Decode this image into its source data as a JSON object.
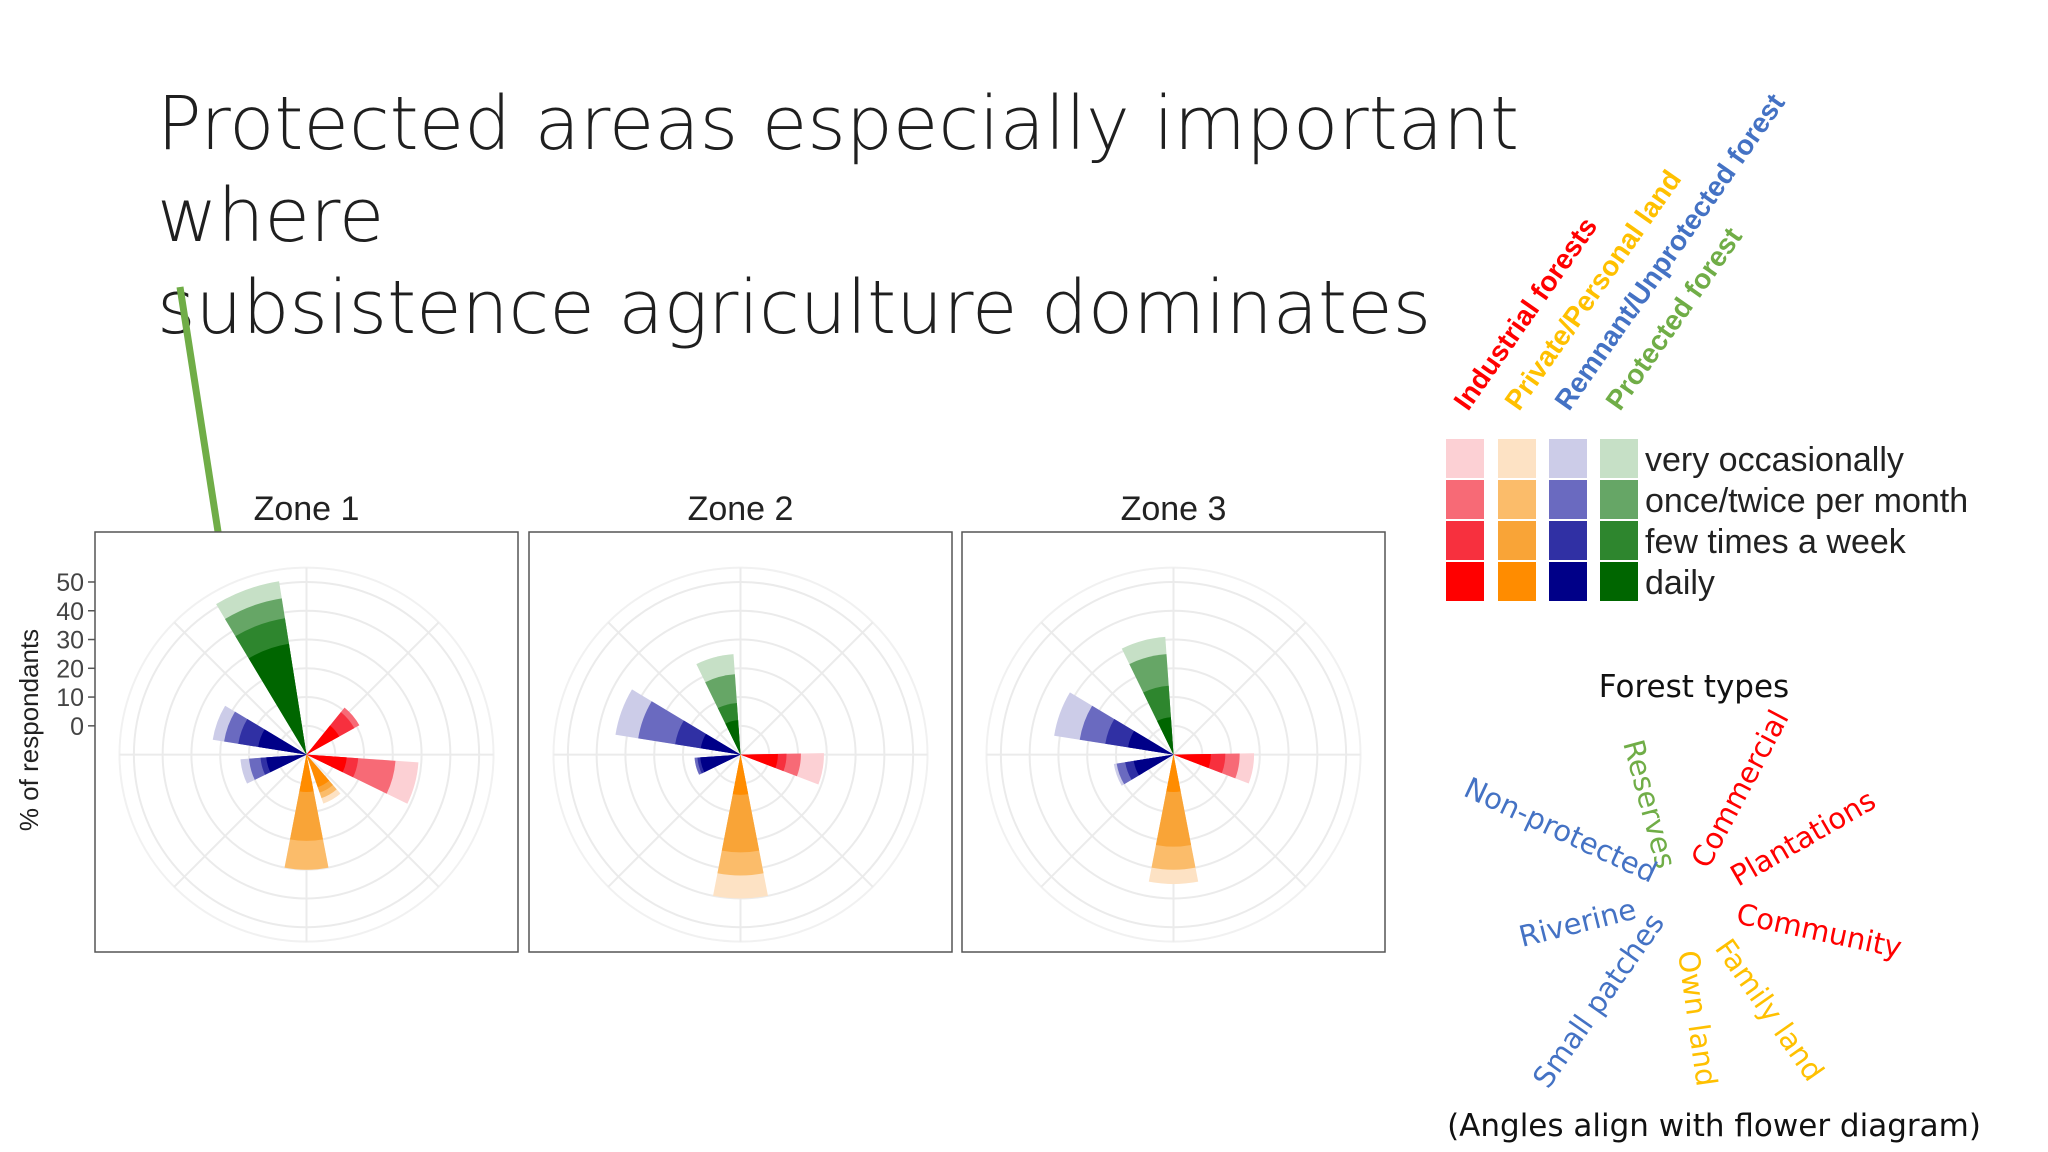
{
  "slide": {
    "title_line1": "Protected areas especially important where",
    "title_line2": "subsistence agriculture dominates",
    "arrow_color": "#70ad47"
  },
  "chart_data": {
    "type": "polar-bar",
    "ylabel": "% of respondants",
    "y_ticks": [
      0,
      10,
      20,
      30,
      40,
      50
    ],
    "axis_range": [
      -10,
      55
    ],
    "panels": [
      {
        "title": "Zone 1",
        "bars": [
          {
            "forest": "Industrial forests",
            "angle_deg": 105,
            "stack": {
              "daily": 4,
              "few_times_week": 8,
              "once_twice_month": 21,
              "very_occasionally": 29
            }
          },
          {
            "forest": "Industrial forests",
            "angle_deg": 50,
            "stack": {
              "daily": 3,
              "few_times_week": 9,
              "once_twice_month": 11,
              "very_occasionally": 11
            }
          },
          {
            "forest": "Private/Personal land",
            "angle_deg": 180,
            "stack": {
              "daily": 3,
              "few_times_week": 20,
              "once_twice_month": 30,
              "very_occasionally": 30
            }
          },
          {
            "forest": "Private/Personal land",
            "angle_deg": 150,
            "stack": {
              "daily": 2,
              "few_times_week": 4,
              "once_twice_month": 6,
              "very_occasionally": 8
            }
          },
          {
            "forest": "Remnant/Unprotected forest",
            "angle_deg": -70,
            "stack": {
              "daily": 7,
              "few_times_week": 14,
              "once_twice_month": 19,
              "very_occasionally": 23
            }
          },
          {
            "forest": "Remnant/Unprotected forest",
            "angle_deg": -105,
            "stack": {
              "daily": 4,
              "few_times_week": 6,
              "once_twice_month": 10,
              "very_occasionally": 13
            }
          },
          {
            "forest": "Protected forest",
            "angle_deg": -20,
            "stack": {
              "daily": 29,
              "few_times_week": 38,
              "once_twice_month": 45,
              "very_occasionally": 51
            }
          }
        ]
      },
      {
        "title": "Zone 2",
        "bars": [
          {
            "forest": "Industrial forests",
            "angle_deg": 100,
            "stack": {
              "daily": 3,
              "few_times_week": 6,
              "once_twice_month": 11,
              "very_occasionally": 19
            }
          },
          {
            "forest": "Private/Personal land",
            "angle_deg": 180,
            "stack": {
              "daily": 4,
              "few_times_week": 24,
              "once_twice_month": 32,
              "very_occasionally": 40
            }
          },
          {
            "forest": "Remnant/Unprotected forest",
            "angle_deg": -70,
            "stack": {
              "daily": 4,
              "few_times_week": 13,
              "once_twice_month": 26,
              "very_occasionally": 34
            }
          },
          {
            "forest": "Remnant/Unprotected forest",
            "angle_deg": -105,
            "stack": {
              "daily": 4,
              "few_times_week": 5,
              "once_twice_month": 6,
              "very_occasionally": 6
            }
          },
          {
            "forest": "Protected forest",
            "angle_deg": -15,
            "stack": {
              "daily": 2,
              "few_times_week": 8,
              "once_twice_month": 18,
              "very_occasionally": 25
            }
          }
        ]
      },
      {
        "title": "Zone 3",
        "bars": [
          {
            "forest": "Industrial forests",
            "angle_deg": 100,
            "stack": {
              "daily": 3,
              "few_times_week": 8,
              "once_twice_month": 13,
              "very_occasionally": 18
            }
          },
          {
            "forest": "Private/Personal land",
            "angle_deg": 180,
            "stack": {
              "daily": 3,
              "few_times_week": 22,
              "once_twice_month": 30,
              "very_occasionally": 35
            }
          },
          {
            "forest": "Remnant/Unprotected forest",
            "angle_deg": -70,
            "stack": {
              "daily": 6,
              "few_times_week": 14,
              "once_twice_month": 23,
              "very_occasionally": 32
            }
          },
          {
            "forest": "Remnant/Unprotected forest",
            "angle_deg": -110,
            "stack": {
              "daily": 4,
              "few_times_week": 7,
              "once_twice_month": 10,
              "very_occasionally": 11
            }
          },
          {
            "forest": "Protected forest",
            "angle_deg": -15,
            "stack": {
              "daily": 3,
              "few_times_week": 14,
              "once_twice_month": 25,
              "very_occasionally": 31
            }
          }
        ]
      }
    ],
    "legend": {
      "placement": "right",
      "forest_types": [
        {
          "name": "Industrial forests",
          "color": "#ff0000",
          "shades": [
            "#fcd0d4",
            "#f76a76",
            "#f7303e",
            "#ff0000"
          ]
        },
        {
          "name": "Private/Personal land",
          "color": "#ffc000",
          "shades": [
            "#fde2c4",
            "#fbbc6a",
            "#f9a437",
            "#ff8c00"
          ]
        },
        {
          "name": "Remnant/Unprotected forest",
          "color": "#4472c4",
          "shades": [
            "#cccce8",
            "#6a6ac0",
            "#3030a4",
            "#000088"
          ]
        },
        {
          "name": "Protected forest",
          "color": "#70ad47",
          "shades": [
            "#c6e0c6",
            "#66a666",
            "#2e862e",
            "#006600"
          ]
        }
      ],
      "frequencies": [
        "very occasionally",
        "once/twice per month",
        "few times a week",
        "daily"
      ]
    },
    "forest_types_diagram": {
      "title": "Forest types",
      "caption": "(Angles align with flower diagram)",
      "labels": [
        {
          "text": "Reserves",
          "color": "#70ad47"
        },
        {
          "text": "Commercial",
          "color": "#ff0000"
        },
        {
          "text": "Plantations",
          "color": "#ff0000"
        },
        {
          "text": "Community",
          "color": "#ff0000"
        },
        {
          "text": "Family land",
          "color": "#ffc000"
        },
        {
          "text": "Own land",
          "color": "#ffc000"
        },
        {
          "text": "Small patches",
          "color": "#4472c4"
        },
        {
          "text": "Riverine",
          "color": "#4472c4"
        },
        {
          "text": "Non-protected",
          "color": "#4472c4"
        }
      ]
    }
  }
}
